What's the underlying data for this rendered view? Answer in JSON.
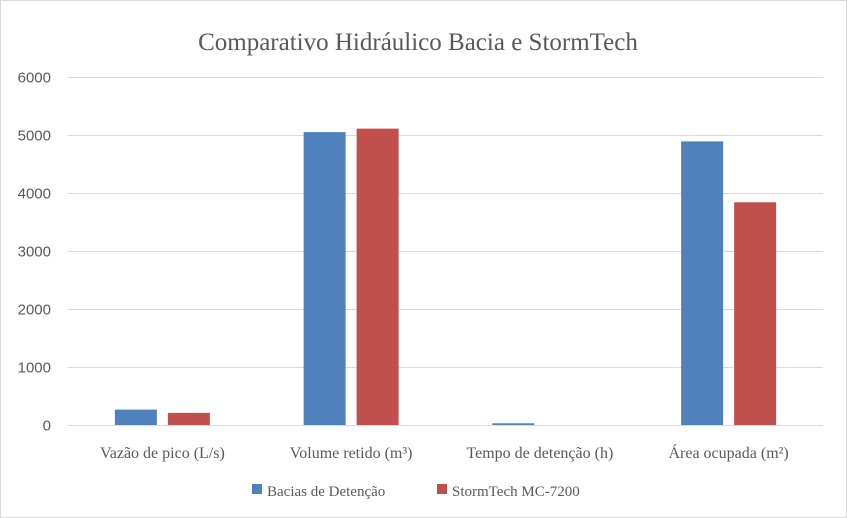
{
  "chart_data": {
    "type": "bar",
    "title": "Comparativo  Hidráulico  Bacia  e  StormTech",
    "xlabel": "",
    "ylabel": "",
    "ylim": [
      0,
      6000
    ],
    "yticks": [
      0,
      1000,
      2000,
      3000,
      4000,
      5000,
      6000
    ],
    "grid": true,
    "legend_position": "bottom",
    "categories": [
      "Vazão  de pico  (L/s)",
      "Volume retido (m³)",
      "Tempo de detenção (h)",
      "Área ocupada (m²)"
    ],
    "series": [
      {
        "name": "Bacias de Detenção",
        "color": "#4f81bd",
        "values": [
          265,
          5050,
          30,
          4890
        ]
      },
      {
        "name": "StormTech  MC-7200",
        "color": "#c0504d",
        "values": [
          210,
          5110,
          0,
          3840
        ]
      }
    ]
  }
}
